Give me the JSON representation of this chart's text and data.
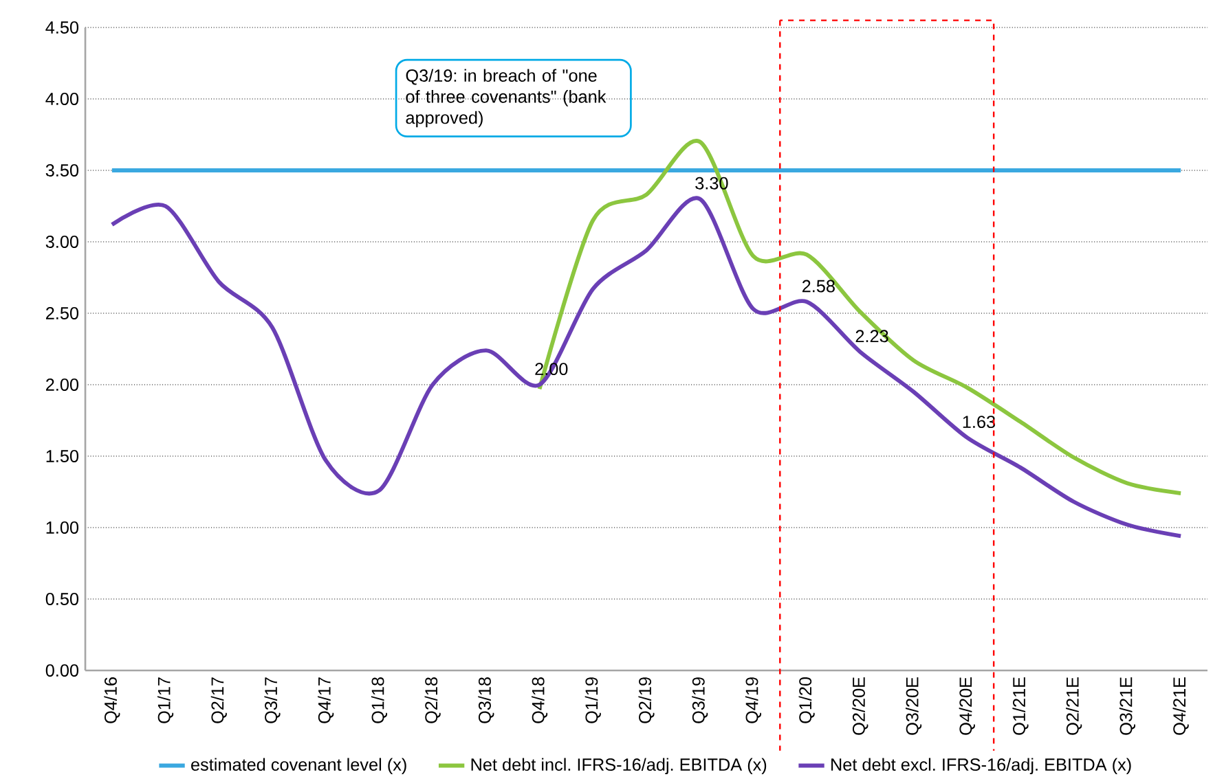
{
  "chart_data": {
    "type": "line",
    "categories": [
      "Q4/16",
      "Q1/17",
      "Q2/17",
      "Q3/17",
      "Q4/17",
      "Q1/18",
      "Q2/18",
      "Q3/18",
      "Q4/18",
      "Q1/19",
      "Q2/19",
      "Q3/19",
      "Q4/19",
      "Q1/20",
      "Q2/20E",
      "Q3/20E",
      "Q4/20E",
      "Q1/21E",
      "Q2/21E",
      "Q3/21E",
      "Q4/21E"
    ],
    "series": [
      {
        "name": "Net debt incl. IFRS-16/adj. EBITDA (x)",
        "color": "#8cc63f",
        "values": [
          null,
          null,
          null,
          null,
          null,
          null,
          null,
          null,
          1.97,
          3.15,
          3.33,
          3.7,
          2.9,
          2.91,
          2.51,
          2.17,
          1.98,
          1.74,
          1.49,
          1.31,
          1.24
        ]
      },
      {
        "name": "Net debt excl. IFRS-16/adj. EBITDA (x)",
        "color": "#6a3fb5",
        "values": [
          3.12,
          3.25,
          2.72,
          2.4,
          1.47,
          1.26,
          2.0,
          2.24,
          2.0,
          2.67,
          2.94,
          3.3,
          2.53,
          2.58,
          2.23,
          1.95,
          1.63,
          1.42,
          1.18,
          1.02,
          0.94
        ],
        "value_labels": [
          null,
          null,
          null,
          null,
          null,
          null,
          null,
          null,
          "2.00",
          null,
          null,
          "3.30",
          null,
          "2.58",
          "2.23",
          null,
          "1.63",
          null,
          null,
          null,
          null
        ]
      },
      {
        "name": "estimated covenant level (x)",
        "color": "#3aa8e0",
        "values": [
          3.5,
          3.5,
          3.5,
          3.5,
          3.5,
          3.5,
          3.5,
          3.5,
          3.5,
          3.5,
          3.5,
          3.5,
          3.5,
          3.5,
          3.5,
          3.5,
          3.5,
          3.5,
          3.5,
          3.5,
          3.5
        ]
      }
    ],
    "ylim": [
      0,
      4.5
    ],
    "yticks": [
      {
        "value": 0,
        "label": "0.00"
      },
      {
        "value": 0.5,
        "label": "0.50"
      },
      {
        "value": 1,
        "label": "1.00"
      },
      {
        "value": 1.5,
        "label": "1.50"
      },
      {
        "value": 2,
        "label": "2.00"
      },
      {
        "value": 2.5,
        "label": "2.50"
      },
      {
        "value": 3,
        "label": "3.00"
      },
      {
        "value": 3.5,
        "label": "3.50"
      },
      {
        "value": 4,
        "label": "4.00"
      },
      {
        "value": 4.5,
        "label": "4.50"
      }
    ],
    "grid": "y",
    "legend": "bottom",
    "annotations": [
      "Q3/19: in breach of \"one of three covenants\" (bank approved)"
    ]
  }
}
